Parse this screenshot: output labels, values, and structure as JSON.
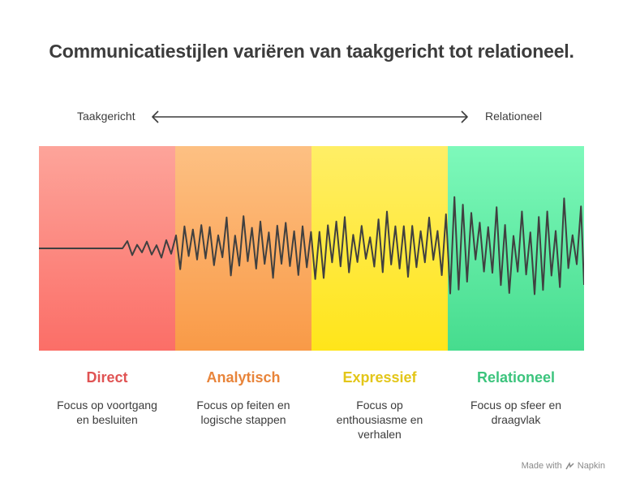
{
  "title": "Communicatiestijlen variëren van taakgericht tot relationeel.",
  "axis": {
    "left_label": "Taakgericht",
    "right_label": "Relationeel",
    "color": "#333333"
  },
  "styles": [
    {
      "name": "Direct",
      "description": "Focus op voortgang en besluiten",
      "color": "#e05353"
    },
    {
      "name": "Analytisch",
      "description": "Focus op feiten en logische stappen",
      "color": "#e8843a"
    },
    {
      "name": "Expressief",
      "description": "Focus op enthousiasme en verhalen",
      "color": "#e3c619"
    },
    {
      "name": "Relationeel",
      "description": "Focus op sfeer en draagvlak",
      "color": "#3cc47d"
    }
  ],
  "footer": {
    "prefix": "Made with",
    "brand": "Napkin",
    "icon": "napkin-logo-icon"
  }
}
